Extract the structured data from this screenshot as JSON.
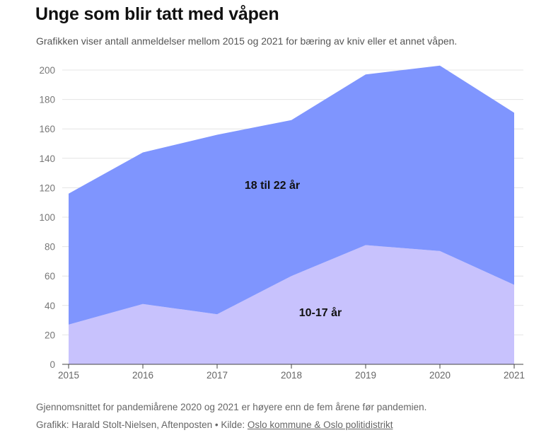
{
  "header": {
    "title": "Unge som blir tatt med våpen",
    "subtitle": "Grafikken viser antall anmeldelser mellom 2015 og 2021 for bæring av kniv eller et annet våpen."
  },
  "footer": {
    "note": "Gjennomsnittet for pandemiårene 2020 og 2021 er høyere enn de fem årene før pandemien.",
    "credit_prefix": "Grafikk: Harald Stolt-Nielsen, Aftenposten • Kilde: ",
    "source_link": "Oslo kommune & Oslo politidistrikt"
  },
  "chart_data": {
    "type": "area",
    "stacked": true,
    "x": [
      "2015",
      "2016",
      "2017",
      "2018",
      "2019",
      "2020",
      "2021"
    ],
    "ylim": [
      0,
      200
    ],
    "yticks": [
      "0",
      "20",
      "40",
      "60",
      "80",
      "100",
      "120",
      "140",
      "160",
      "180",
      "200"
    ],
    "grid": true,
    "series": [
      {
        "name": "10-17 år",
        "values": [
          27,
          41,
          34,
          60,
          81,
          77,
          54
        ],
        "color": "#c8c2fd"
      },
      {
        "name": "18 til 22 år",
        "values": [
          89,
          103,
          122,
          106,
          116,
          126,
          117
        ],
        "color": "#7f95fe"
      }
    ],
    "totals": [
      116,
      144,
      156,
      166,
      197,
      203,
      171
    ]
  }
}
